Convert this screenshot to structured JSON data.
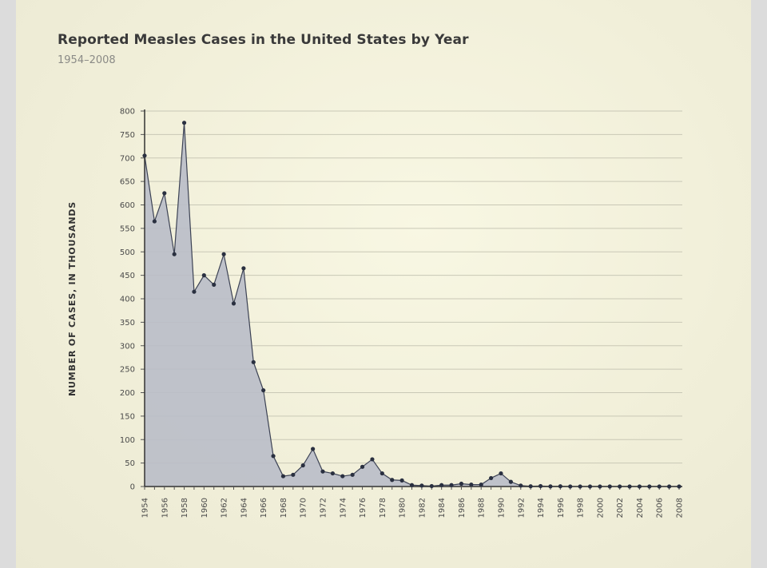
{
  "chart_data": {
    "type": "area",
    "title": "Reported Measles Cases in the United States by Year",
    "subtitle": "1954–2008",
    "xlabel": "",
    "ylabel": "NUMBER OF CASES, IN THOUSANDS",
    "ylim": [
      0,
      800
    ],
    "yticks": [
      0,
      50,
      100,
      150,
      200,
      250,
      300,
      350,
      400,
      450,
      500,
      550,
      600,
      650,
      700,
      750,
      800
    ],
    "xticks": [
      1954,
      1956,
      1958,
      1960,
      1962,
      1964,
      1966,
      1968,
      1970,
      1972,
      1974,
      1976,
      1978,
      1980,
      1982,
      1984,
      1986,
      1988,
      1990,
      1992,
      1994,
      1996,
      1998,
      2000,
      2002,
      2004,
      2006,
      2008
    ],
    "grid": true,
    "colors": {
      "fill": "#b9bdc8",
      "line": "#3c4254",
      "marker": "#2a3040",
      "grid": "#c9c8b6"
    },
    "x": [
      1954,
      1955,
      1956,
      1957,
      1958,
      1959,
      1960,
      1961,
      1962,
      1963,
      1964,
      1965,
      1966,
      1967,
      1968,
      1969,
      1970,
      1971,
      1972,
      1973,
      1974,
      1975,
      1976,
      1977,
      1978,
      1979,
      1980,
      1981,
      1982,
      1983,
      1984,
      1985,
      1986,
      1987,
      1988,
      1989,
      1990,
      1991,
      1992,
      1993,
      1994,
      1995,
      1996,
      1997,
      1998,
      1999,
      2000,
      2001,
      2002,
      2003,
      2004,
      2005,
      2006,
      2007,
      2008
    ],
    "values": [
      705,
      565,
      625,
      495,
      775,
      415,
      450,
      430,
      495,
      390,
      465,
      265,
      205,
      65,
      22,
      25,
      45,
      80,
      32,
      28,
      22,
      25,
      42,
      58,
      28,
      14,
      13,
      3,
      2,
      1,
      3,
      3,
      6,
      4,
      4,
      18,
      28,
      10,
      2,
      0.5,
      1,
      0.3,
      0.5,
      0.1,
      0.1,
      0.1,
      0.1,
      0.1,
      0.1,
      0.1,
      0.1,
      0.1,
      0.1,
      0.1,
      0.1
    ]
  }
}
